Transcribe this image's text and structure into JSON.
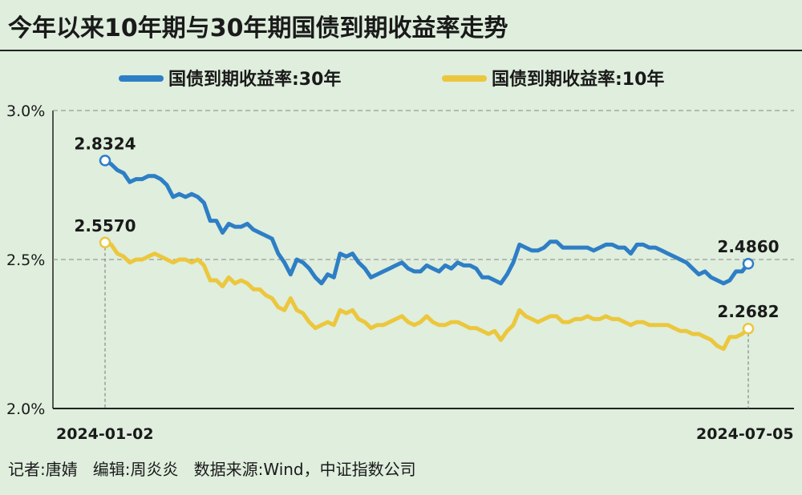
{
  "chart_data": {
    "type": "line",
    "title": "今年以来10年期与30年期国债到期收益率走势",
    "xlabel": "",
    "ylabel": "",
    "ylim": [
      2.0,
      3.0
    ],
    "y_ticks": [
      "3.0%",
      "2.5%",
      "2.0%"
    ],
    "x_range": [
      "2024-01-02",
      "2024-07-05"
    ],
    "x_tick_labels": [
      "2024-01-02",
      "2024-07-05"
    ],
    "gridlines": "dashed at 3.0% and 2.5%",
    "legend_position": "top",
    "series": [
      {
        "name": "国债到期收益率:30年",
        "color": "#2e7ec6",
        "values": [
          2.8324,
          2.82,
          2.8,
          2.79,
          2.76,
          2.77,
          2.77,
          2.78,
          2.78,
          2.77,
          2.75,
          2.71,
          2.72,
          2.71,
          2.72,
          2.71,
          2.69,
          2.63,
          2.63,
          2.59,
          2.62,
          2.61,
          2.61,
          2.62,
          2.6,
          2.59,
          2.58,
          2.57,
          2.52,
          2.49,
          2.45,
          2.5,
          2.49,
          2.47,
          2.44,
          2.42,
          2.45,
          2.44,
          2.52,
          2.51,
          2.52,
          2.49,
          2.47,
          2.44,
          2.45,
          2.46,
          2.47,
          2.48,
          2.49,
          2.47,
          2.46,
          2.46,
          2.48,
          2.47,
          2.46,
          2.48,
          2.47,
          2.49,
          2.48,
          2.48,
          2.47,
          2.44,
          2.44,
          2.43,
          2.42,
          2.45,
          2.49,
          2.55,
          2.54,
          2.53,
          2.53,
          2.54,
          2.56,
          2.56,
          2.54,
          2.54,
          2.54,
          2.54,
          2.54,
          2.53,
          2.54,
          2.55,
          2.55,
          2.54,
          2.54,
          2.52,
          2.55,
          2.55,
          2.54,
          2.54,
          2.53,
          2.52,
          2.51,
          2.5,
          2.49,
          2.47,
          2.45,
          2.46,
          2.44,
          2.43,
          2.42,
          2.43,
          2.46,
          2.46,
          2.486
        ]
      },
      {
        "name": "国债到期收益率:10年",
        "color": "#ecc73d",
        "values": [
          2.557,
          2.55,
          2.52,
          2.51,
          2.49,
          2.5,
          2.5,
          2.51,
          2.52,
          2.51,
          2.5,
          2.49,
          2.5,
          2.5,
          2.49,
          2.5,
          2.48,
          2.43,
          2.43,
          2.41,
          2.44,
          2.42,
          2.43,
          2.42,
          2.4,
          2.4,
          2.38,
          2.37,
          2.34,
          2.33,
          2.37,
          2.33,
          2.32,
          2.29,
          2.27,
          2.28,
          2.29,
          2.28,
          2.33,
          2.32,
          2.33,
          2.3,
          2.29,
          2.27,
          2.28,
          2.28,
          2.29,
          2.3,
          2.31,
          2.29,
          2.28,
          2.29,
          2.31,
          2.29,
          2.28,
          2.28,
          2.29,
          2.29,
          2.28,
          2.27,
          2.27,
          2.26,
          2.25,
          2.26,
          2.23,
          2.26,
          2.28,
          2.33,
          2.31,
          2.3,
          2.29,
          2.3,
          2.31,
          2.31,
          2.29,
          2.29,
          2.3,
          2.3,
          2.31,
          2.3,
          2.3,
          2.31,
          2.3,
          2.3,
          2.29,
          2.28,
          2.29,
          2.29,
          2.28,
          2.28,
          2.28,
          2.28,
          2.27,
          2.26,
          2.26,
          2.25,
          2.25,
          2.24,
          2.23,
          2.21,
          2.2,
          2.24,
          2.24,
          2.25,
          2.2682
        ]
      }
    ],
    "annotations": [
      {
        "label": "2.8324",
        "series": 0,
        "point": "first"
      },
      {
        "label": "2.5570",
        "series": 1,
        "point": "first"
      },
      {
        "label": "2.4860",
        "series": 0,
        "point": "last"
      },
      {
        "label": "2.2682",
        "series": 1,
        "point": "last"
      }
    ]
  },
  "footer": {
    "credits": "记者:唐婧   编辑:周炎炎   数据来源:Wind，中证指数公司"
  }
}
